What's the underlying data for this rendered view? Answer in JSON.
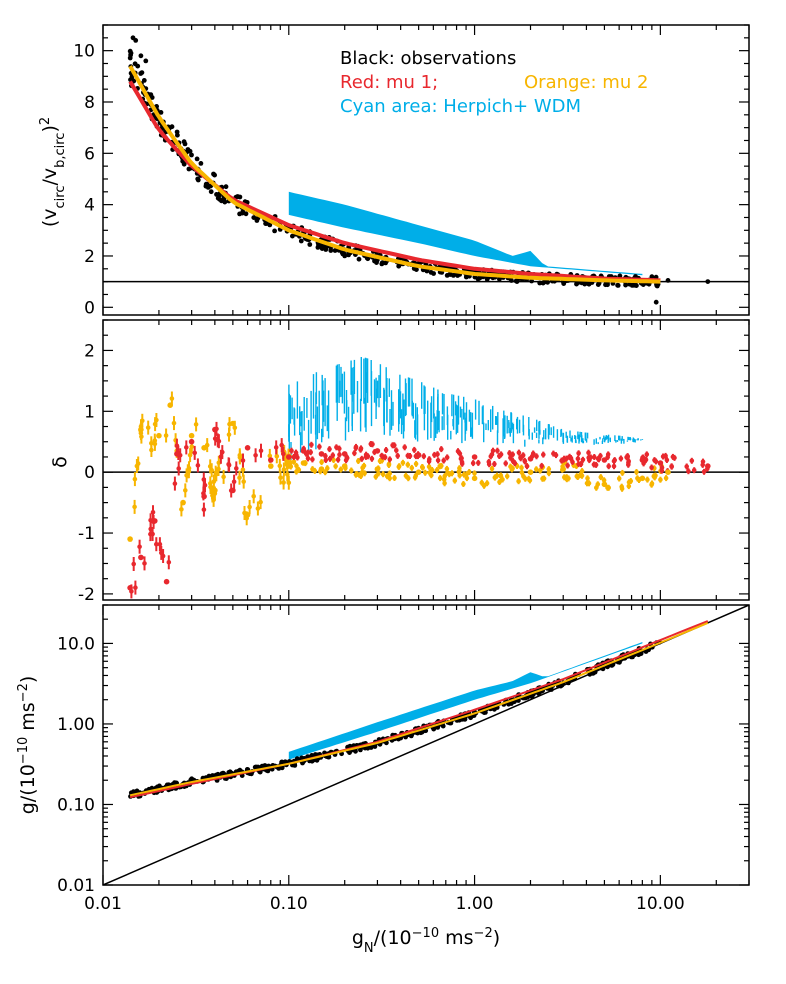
{
  "chart_data": [
    {
      "type": "scatter",
      "panel": "top",
      "xscale": "log",
      "xlim": [
        0.01,
        30
      ],
      "ylim": [
        -0.3,
        11
      ],
      "ylabel": "(v_circ/v_b,circ)^2",
      "yticks": [
        "0",
        "2",
        "4",
        "6",
        "8",
        "10"
      ],
      "legend": {
        "line1": "Black: observations",
        "line2a": "Red: mu 1;",
        "line2b": "Orange: mu 2",
        "line3": "Cyan area: Herpich+ WDM"
      },
      "colors": {
        "observations": "#000000",
        "mu1": "#e8282e",
        "mu2": "#f7b500",
        "wdm": "#00aee8"
      },
      "series": [
        {
          "name": "mu 1",
          "type": "line",
          "x": [
            0.014,
            0.02,
            0.03,
            0.05,
            0.1,
            0.2,
            0.5,
            1,
            2,
            5,
            10
          ],
          "y": [
            8.8,
            6.9,
            5.5,
            4.2,
            3.2,
            2.5,
            1.85,
            1.5,
            1.3,
            1.12,
            1.05
          ]
        },
        {
          "name": "mu 2",
          "type": "line",
          "x": [
            0.014,
            0.02,
            0.03,
            0.05,
            0.1,
            0.2,
            0.5,
            1,
            2,
            5,
            10
          ],
          "y": [
            9.4,
            7.4,
            5.6,
            4.1,
            3.0,
            2.25,
            1.6,
            1.3,
            1.15,
            1.05,
            1.0
          ]
        },
        {
          "name": "Herpich+ WDM upper",
          "type": "area_upper",
          "x": [
            0.1,
            0.2,
            0.5,
            1,
            1.6,
            2,
            2.4,
            8
          ],
          "y": [
            4.5,
            4.0,
            3.2,
            2.6,
            2.0,
            2.2,
            1.6,
            1.3
          ]
        },
        {
          "name": "Herpich+ WDM lower",
          "type": "area_lower",
          "x": [
            0.1,
            0.2,
            0.5,
            1,
            2,
            8
          ],
          "y": [
            3.6,
            3.1,
            2.5,
            2.0,
            1.6,
            1.25
          ]
        },
        {
          "name": "reference",
          "type": "hline",
          "y": 1
        }
      ]
    },
    {
      "type": "scatter",
      "panel": "middle",
      "xscale": "log",
      "xlim": [
        0.01,
        30
      ],
      "ylim": [
        -2.1,
        2.5
      ],
      "ylabel": "δ",
      "yticks": [
        "-2",
        "-1",
        "0",
        "1",
        "2"
      ],
      "series": [
        {
          "name": "mu 1",
          "type": "points",
          "x": [
            0.014,
            0.016,
            0.019,
            0.022,
            0.025,
            0.03,
            0.035,
            0.04,
            0.05,
            0.06,
            0.08,
            0.1,
            0.12,
            0.15,
            0.2,
            0.3,
            0.5,
            1,
            2,
            3,
            5,
            8,
            10,
            18
          ],
          "y": [
            -1.9,
            -1.4,
            -0.8,
            -1.8,
            0.3,
            0.5,
            -0.4,
            0.7,
            -0.3,
            0.4,
            0.2,
            0.25,
            0.35,
            0.3,
            0.3,
            0.35,
            0.28,
            0.25,
            0.22,
            0.2,
            0.2,
            0.2,
            0.15,
            0.1
          ]
        },
        {
          "name": "mu 2",
          "type": "points",
          "x": [
            0.014,
            0.016,
            0.02,
            0.023,
            0.027,
            0.03,
            0.035,
            0.04,
            0.05,
            0.06,
            0.08,
            0.1,
            0.12,
            0.15,
            0.2,
            0.3,
            0.5,
            1,
            2,
            3,
            5,
            8,
            11
          ],
          "y": [
            -1.1,
            0.7,
            0.6,
            1.1,
            -0.5,
            0.6,
            0.4,
            -0.3,
            0.8,
            -0.7,
            0.1,
            0.1,
            0.15,
            0.05,
            0.1,
            0.05,
            0.0,
            -0.1,
            0.0,
            0.05,
            -0.2,
            -0.1,
            0.0
          ]
        },
        {
          "name": "Herpich+ WDM",
          "type": "errorbars",
          "x": [
            0.1,
            0.12,
            0.15,
            0.2,
            0.25,
            0.3,
            0.4,
            0.5,
            0.7,
            1.0,
            1.5,
            2,
            3,
            4,
            6,
            8
          ],
          "ylo": [
            0.0,
            0.3,
            0.4,
            0.5,
            0.5,
            0.6,
            0.55,
            0.5,
            0.5,
            0.45,
            0.45,
            0.4,
            0.45,
            0.45,
            0.45,
            0.5
          ],
          "yhi": [
            1.6,
            1.5,
            1.7,
            1.8,
            1.9,
            1.8,
            1.6,
            1.5,
            1.3,
            1.2,
            1.0,
            0.9,
            0.7,
            0.65,
            0.6,
            0.55
          ]
        },
        {
          "name": "reference",
          "type": "hline",
          "y": 0
        }
      ]
    },
    {
      "type": "scatter",
      "panel": "bottom",
      "xscale": "log",
      "yscale": "log",
      "xlim": [
        0.01,
        30
      ],
      "ylim": [
        0.01,
        30
      ],
      "xlabel": "g_N/(10^-10 ms^-2)",
      "ylabel": "g/(10^-10 ms^-2)",
      "xticks": [
        "0.01",
        "0.10",
        "1.00",
        "10.00"
      ],
      "yticks": [
        "0.01",
        "0.10",
        "1.00",
        "10.0"
      ],
      "series": [
        {
          "name": "mu 1",
          "type": "line",
          "x": [
            0.014,
            0.03,
            0.1,
            0.3,
            1,
            3,
            10,
            18
          ],
          "y": [
            0.123,
            0.18,
            0.32,
            0.6,
            1.5,
            3.6,
            11,
            19
          ]
        },
        {
          "name": "mu 2",
          "type": "line",
          "x": [
            0.014,
            0.03,
            0.1,
            0.3,
            1,
            3,
            10,
            18
          ],
          "y": [
            0.13,
            0.19,
            0.32,
            0.58,
            1.35,
            3.3,
            10.2,
            18
          ]
        },
        {
          "name": "Herpich+ WDM upper",
          "type": "area_upper",
          "x": [
            0.1,
            0.3,
            1,
            1.6,
            2,
            2.4,
            8
          ],
          "y": [
            0.45,
            1.05,
            2.6,
            3.4,
            4.4,
            3.8,
            10.4
          ]
        },
        {
          "name": "Herpich+ WDM lower",
          "type": "area_lower",
          "x": [
            0.1,
            0.3,
            1,
            2,
            8
          ],
          "y": [
            0.36,
            0.8,
            2.0,
            3.2,
            10
          ]
        },
        {
          "name": "g = g_N",
          "type": "line",
          "x": [
            0.01,
            30
          ],
          "y": [
            0.01,
            30
          ]
        }
      ]
    }
  ]
}
